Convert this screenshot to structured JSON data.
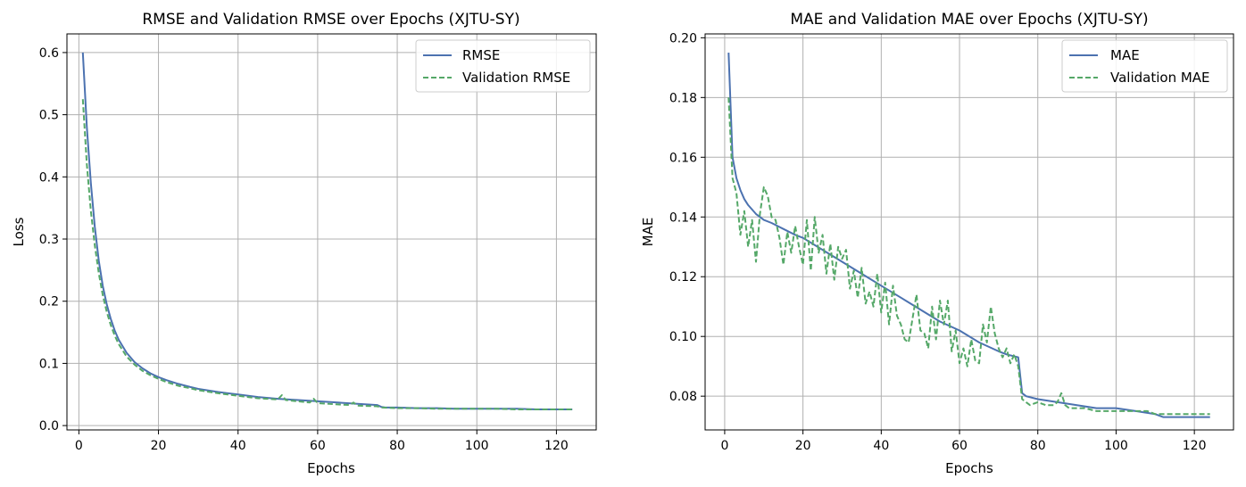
{
  "chart_data": [
    {
      "type": "line",
      "title": "RMSE and Validation RMSE over Epochs (XJTU-SY)",
      "xlabel": "Epochs",
      "ylabel": "Loss",
      "xlim": [
        -3,
        130
      ],
      "ylim": [
        -0.007,
        0.63
      ],
      "xticks": [
        0,
        20,
        40,
        60,
        80,
        100,
        120
      ],
      "yticks": [
        0.0,
        0.1,
        0.2,
        0.3,
        0.4,
        0.5,
        0.6
      ],
      "xtick_labels": [
        "0",
        "20",
        "40",
        "60",
        "80",
        "100",
        "120"
      ],
      "ytick_labels": [
        "0.0",
        "0.1",
        "0.2",
        "0.3",
        "0.4",
        "0.5",
        "0.6"
      ],
      "grid": true,
      "legend": "top-right",
      "series": [
        {
          "name": "RMSE",
          "color": "#4c72b0",
          "style": "solid",
          "x": [
            1,
            2,
            3,
            4,
            5,
            6,
            7,
            8,
            9,
            10,
            12,
            14,
            16,
            18,
            20,
            22,
            25,
            28,
            30,
            35,
            40,
            45,
            50,
            55,
            60,
            65,
            70,
            75,
            76,
            77,
            80,
            85,
            90,
            95,
            100,
            105,
            110,
            115,
            120,
            124
          ],
          "y": [
            0.6,
            0.48,
            0.39,
            0.32,
            0.265,
            0.225,
            0.195,
            0.172,
            0.153,
            0.138,
            0.117,
            0.102,
            0.092,
            0.084,
            0.078,
            0.073,
            0.067,
            0.062,
            0.059,
            0.054,
            0.05,
            0.046,
            0.043,
            0.041,
            0.039,
            0.037,
            0.035,
            0.033,
            0.03,
            0.029,
            0.029,
            0.028,
            0.028,
            0.027,
            0.027,
            0.027,
            0.027,
            0.026,
            0.026,
            0.026
          ]
        },
        {
          "name": "Validation RMSE",
          "color": "#55a868",
          "style": "dashed",
          "x": [
            1,
            2,
            3,
            4,
            5,
            6,
            7,
            8,
            9,
            10,
            12,
            14,
            16,
            18,
            20,
            22,
            25,
            28,
            30,
            35,
            40,
            45,
            50,
            51,
            52,
            55,
            58,
            59,
            60,
            65,
            68,
            69,
            70,
            75,
            76,
            80,
            85,
            90,
            95,
            100,
            105,
            110,
            115,
            120,
            124
          ],
          "y": [
            0.525,
            0.42,
            0.345,
            0.29,
            0.245,
            0.21,
            0.183,
            0.162,
            0.145,
            0.131,
            0.111,
            0.098,
            0.088,
            0.081,
            0.075,
            0.07,
            0.064,
            0.06,
            0.057,
            0.052,
            0.048,
            0.044,
            0.042,
            0.049,
            0.041,
            0.039,
            0.037,
            0.043,
            0.036,
            0.034,
            0.033,
            0.037,
            0.032,
            0.031,
            0.029,
            0.028,
            0.028,
            0.027,
            0.027,
            0.027,
            0.027,
            0.026,
            0.026,
            0.026,
            0.026
          ]
        }
      ]
    },
    {
      "type": "line",
      "title": "MAE and Validation MAE over Epochs (XJTU-SY)",
      "xlabel": "Epochs",
      "ylabel": "MAE",
      "xlim": [
        -5,
        130
      ],
      "ylim": [
        0.0687,
        0.2013
      ],
      "xticks": [
        0,
        20,
        40,
        60,
        80,
        100,
        120
      ],
      "yticks": [
        0.08,
        0.1,
        0.12,
        0.14,
        0.16,
        0.18,
        0.2
      ],
      "xtick_labels": [
        "0",
        "20",
        "40",
        "60",
        "80",
        "100",
        "120"
      ],
      "ytick_labels": [
        "0.08",
        "0.10",
        "0.12",
        "0.14",
        "0.16",
        "0.18",
        "0.20"
      ],
      "grid": true,
      "legend": "top-right",
      "series": [
        {
          "name": "MAE",
          "color": "#4c72b0",
          "style": "solid",
          "x": [
            1,
            2,
            3,
            4,
            5,
            6,
            8,
            10,
            12,
            15,
            18,
            20,
            25,
            30,
            35,
            40,
            45,
            50,
            55,
            60,
            65,
            70,
            72,
            75,
            76,
            77,
            80,
            85,
            90,
            95,
            100,
            105,
            110,
            112,
            115,
            120,
            124
          ],
          "y": [
            0.195,
            0.16,
            0.153,
            0.149,
            0.146,
            0.144,
            0.141,
            0.139,
            0.138,
            0.136,
            0.134,
            0.133,
            0.129,
            0.125,
            0.121,
            0.117,
            0.113,
            0.109,
            0.105,
            0.102,
            0.098,
            0.095,
            0.094,
            0.093,
            0.081,
            0.08,
            0.079,
            0.078,
            0.077,
            0.076,
            0.076,
            0.075,
            0.074,
            0.073,
            0.073,
            0.073,
            0.073
          ]
        },
        {
          "name": "Validation MAE",
          "color": "#55a868",
          "style": "dashed",
          "x": [
            1,
            2,
            3,
            4,
            5,
            6,
            7,
            8,
            9,
            10,
            11,
            12,
            13,
            14,
            15,
            16,
            17,
            18,
            19,
            20,
            21,
            22,
            23,
            24,
            25,
            26,
            27,
            28,
            29,
            30,
            31,
            32,
            33,
            34,
            35,
            36,
            37,
            38,
            39,
            40,
            41,
            42,
            43,
            44,
            45,
            46,
            47,
            48,
            49,
            50,
            51,
            52,
            53,
            54,
            55,
            56,
            57,
            58,
            59,
            60,
            61,
            62,
            63,
            64,
            65,
            66,
            67,
            68,
            69,
            70,
            71,
            72,
            73,
            74,
            75,
            76,
            77,
            78,
            80,
            82,
            84,
            85,
            86,
            87,
            88,
            90,
            92,
            95,
            98,
            100,
            103,
            105,
            108,
            110,
            112,
            115,
            118,
            120,
            122,
            124
          ],
          "y": [
            0.18,
            0.153,
            0.148,
            0.134,
            0.142,
            0.13,
            0.139,
            0.125,
            0.141,
            0.15,
            0.147,
            0.14,
            0.139,
            0.133,
            0.124,
            0.135,
            0.128,
            0.137,
            0.13,
            0.124,
            0.139,
            0.122,
            0.14,
            0.128,
            0.134,
            0.121,
            0.131,
            0.119,
            0.13,
            0.126,
            0.129,
            0.116,
            0.122,
            0.113,
            0.123,
            0.111,
            0.115,
            0.11,
            0.121,
            0.108,
            0.118,
            0.104,
            0.117,
            0.107,
            0.104,
            0.099,
            0.098,
            0.106,
            0.114,
            0.102,
            0.101,
            0.096,
            0.11,
            0.099,
            0.112,
            0.104,
            0.112,
            0.095,
            0.102,
            0.091,
            0.096,
            0.09,
            0.099,
            0.092,
            0.091,
            0.104,
            0.098,
            0.11,
            0.101,
            0.096,
            0.093,
            0.096,
            0.091,
            0.094,
            0.09,
            0.079,
            0.078,
            0.077,
            0.078,
            0.077,
            0.077,
            0.078,
            0.081,
            0.077,
            0.076,
            0.076,
            0.076,
            0.075,
            0.075,
            0.075,
            0.075,
            0.075,
            0.075,
            0.074,
            0.074,
            0.074,
            0.074,
            0.074,
            0.074,
            0.074
          ]
        }
      ]
    }
  ]
}
